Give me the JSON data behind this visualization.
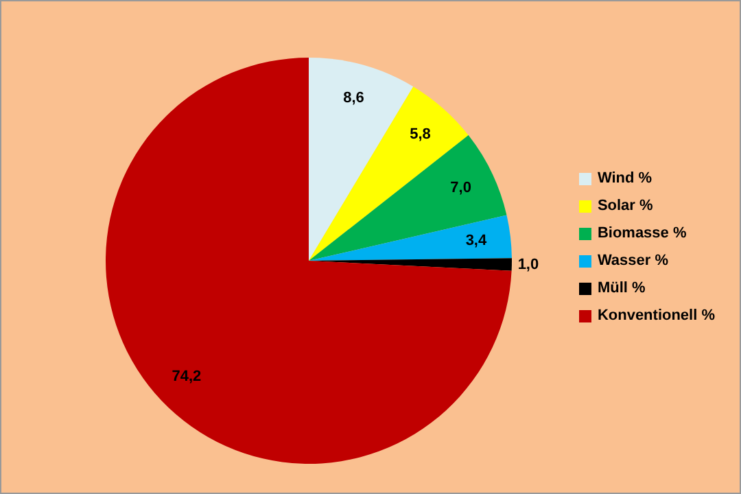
{
  "chart_data": {
    "type": "pie",
    "categories": [
      "Wind %",
      "Solar %",
      "Biomasse %",
      "Wasser %",
      "Müll %",
      "Konventionell %"
    ],
    "values": [
      8.6,
      5.8,
      7.0,
      3.4,
      1.0,
      74.2
    ],
    "value_labels": [
      "8,6",
      "5,8",
      "7,0",
      "3,4",
      "1,0",
      "74,2"
    ],
    "colors": [
      "#daeef3",
      "#ffff00",
      "#00b050",
      "#00b0f0",
      "#000000",
      "#c00000"
    ],
    "legend": "right"
  }
}
